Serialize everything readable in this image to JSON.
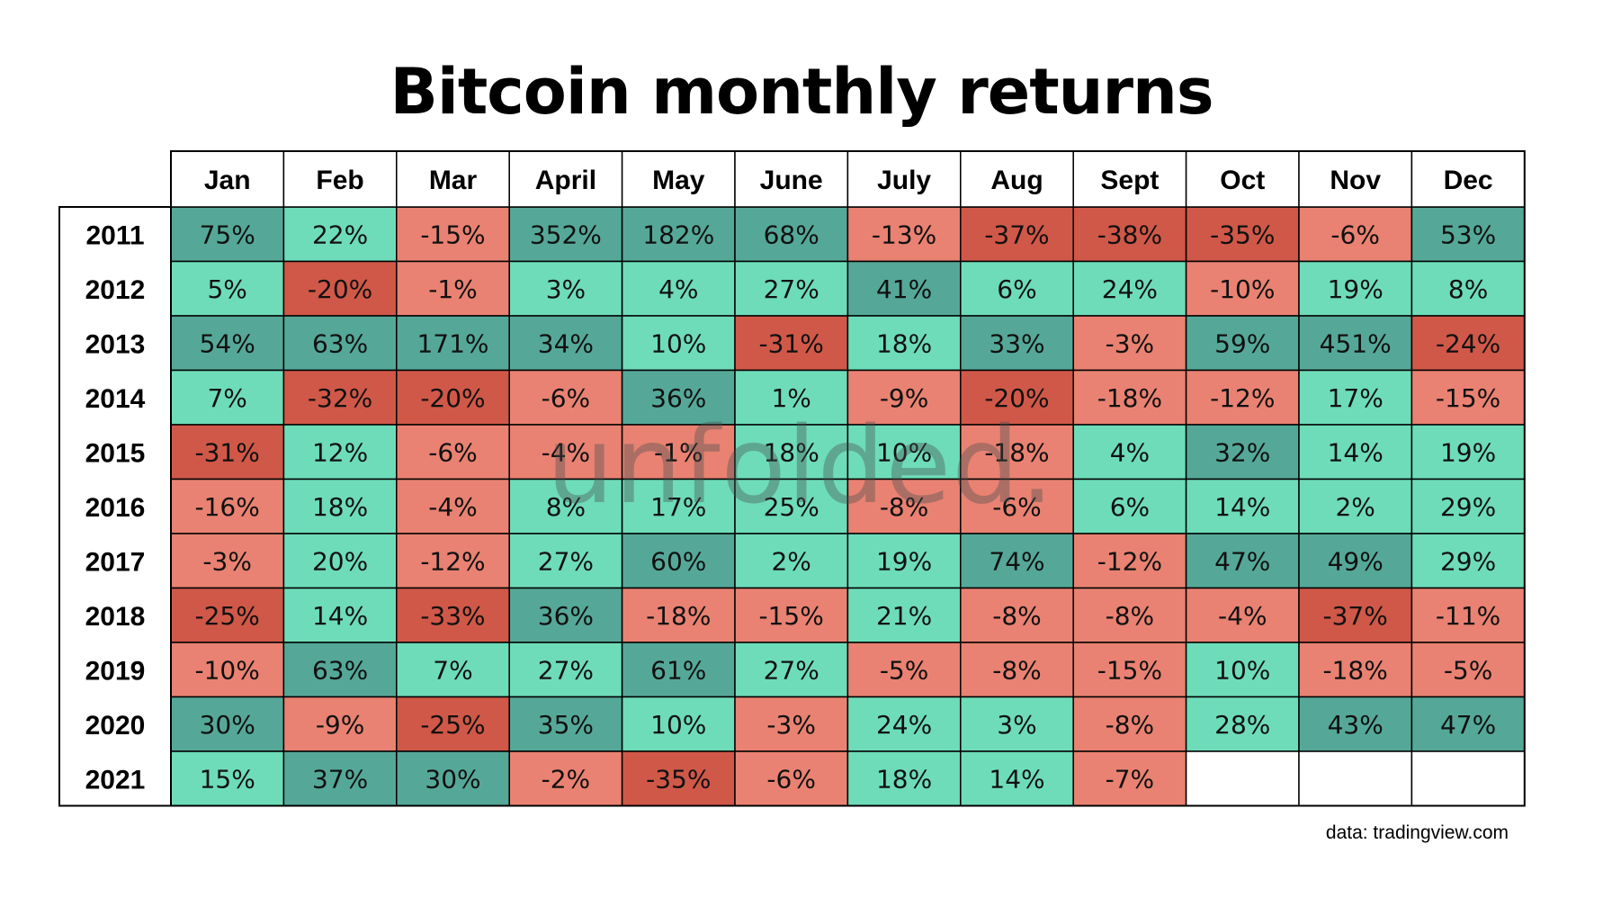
{
  "chart_data": {
    "type": "heatmap",
    "title": "Bitcoin monthly returns",
    "columns": [
      "Jan",
      "Feb",
      "Mar",
      "April",
      "May",
      "June",
      "July",
      "Aug",
      "Sept",
      "Oct",
      "Nov",
      "Dec"
    ],
    "rows": [
      "2011",
      "2012",
      "2013",
      "2014",
      "2015",
      "2016",
      "2017",
      "2018",
      "2019",
      "2020",
      "2021"
    ],
    "values": [
      [
        75,
        22,
        -15,
        352,
        182,
        68,
        -13,
        -37,
        -38,
        -35,
        -6,
        53
      ],
      [
        5,
        -20,
        -1,
        3,
        4,
        27,
        41,
        6,
        24,
        -10,
        19,
        8
      ],
      [
        54,
        63,
        171,
        34,
        10,
        -31,
        18,
        33,
        -3,
        59,
        451,
        -24
      ],
      [
        7,
        -32,
        -20,
        -6,
        36,
        1,
        -9,
        -20,
        -18,
        -12,
        17,
        -15
      ],
      [
        -31,
        12,
        -6,
        -4,
        -1,
        18,
        10,
        -18,
        4,
        32,
        14,
        19
      ],
      [
        -16,
        18,
        -4,
        8,
        17,
        25,
        -8,
        -6,
        6,
        14,
        2,
        29
      ],
      [
        -3,
        20,
        -12,
        27,
        60,
        2,
        19,
        74,
        -12,
        47,
        49,
        29
      ],
      [
        -25,
        14,
        -33,
        36,
        -18,
        -15,
        21,
        -8,
        -8,
        -4,
        -37,
        -11
      ],
      [
        -10,
        63,
        7,
        27,
        61,
        27,
        -5,
        -8,
        -15,
        10,
        -18,
        -5
      ],
      [
        30,
        -9,
        -25,
        35,
        10,
        -3,
        24,
        3,
        -8,
        28,
        43,
        47
      ],
      [
        15,
        37,
        30,
        -2,
        -35,
        -6,
        18,
        14,
        -7,
        null,
        null,
        null
      ]
    ],
    "unit": "%",
    "color_scale": {
      "strong_positive": "#55a898",
      "positive": "#6edcb9",
      "negative": "#e98272",
      "strong_negative": "#d05848",
      "empty": "#ffffff",
      "positive_threshold": 30,
      "negative_threshold": -20
    }
  },
  "watermark": "unfolded.",
  "source": "data: tradingview.com"
}
